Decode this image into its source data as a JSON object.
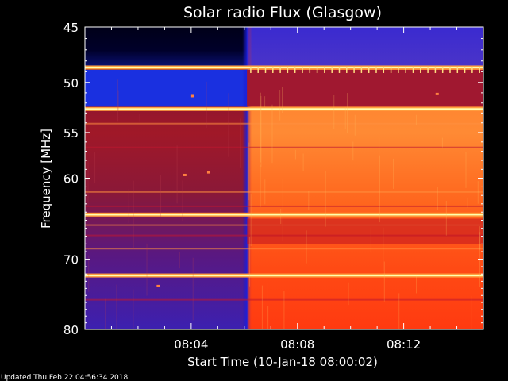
{
  "chart_data": {
    "type": "heatmap",
    "title": "Solar radio Flux (Glasgow)",
    "xlabel": "Start Time (10-Jan-18 08:00:02)",
    "ylabel": "Frequency [MHz]",
    "x_range_minutes": [
      0,
      15
    ],
    "y_range_mhz": [
      45,
      80
    ],
    "y_scale": "log",
    "x_ticks": [
      {
        "label": "08:04",
        "minute": 4
      },
      {
        "label": "08:08",
        "minute": 8
      },
      {
        "label": "08:12",
        "minute": 12
      }
    ],
    "y_ticks": [
      {
        "label": "45",
        "mhz": 45
      },
      {
        "label": "50",
        "mhz": 50
      },
      {
        "label": "55",
        "mhz": 55
      },
      {
        "label": "60",
        "mhz": 60
      },
      {
        "label": "70",
        "mhz": 70
      },
      {
        "label": "80",
        "mhz": 80
      }
    ],
    "colorscale": [
      "#000022",
      "#1010c0",
      "#5020c0",
      "#c01020",
      "#ff3010",
      "#ff7020",
      "#ffb040",
      "#ffffc0"
    ],
    "intensity_step_minute": 6.1,
    "intensity_before_step": "low",
    "intensity_after_step": "high",
    "interference_bands_mhz": [
      48.6,
      52.6,
      64.3,
      72.2
    ],
    "updated_note": "Updated Thu Feb 22 04:56:34 2018"
  }
}
